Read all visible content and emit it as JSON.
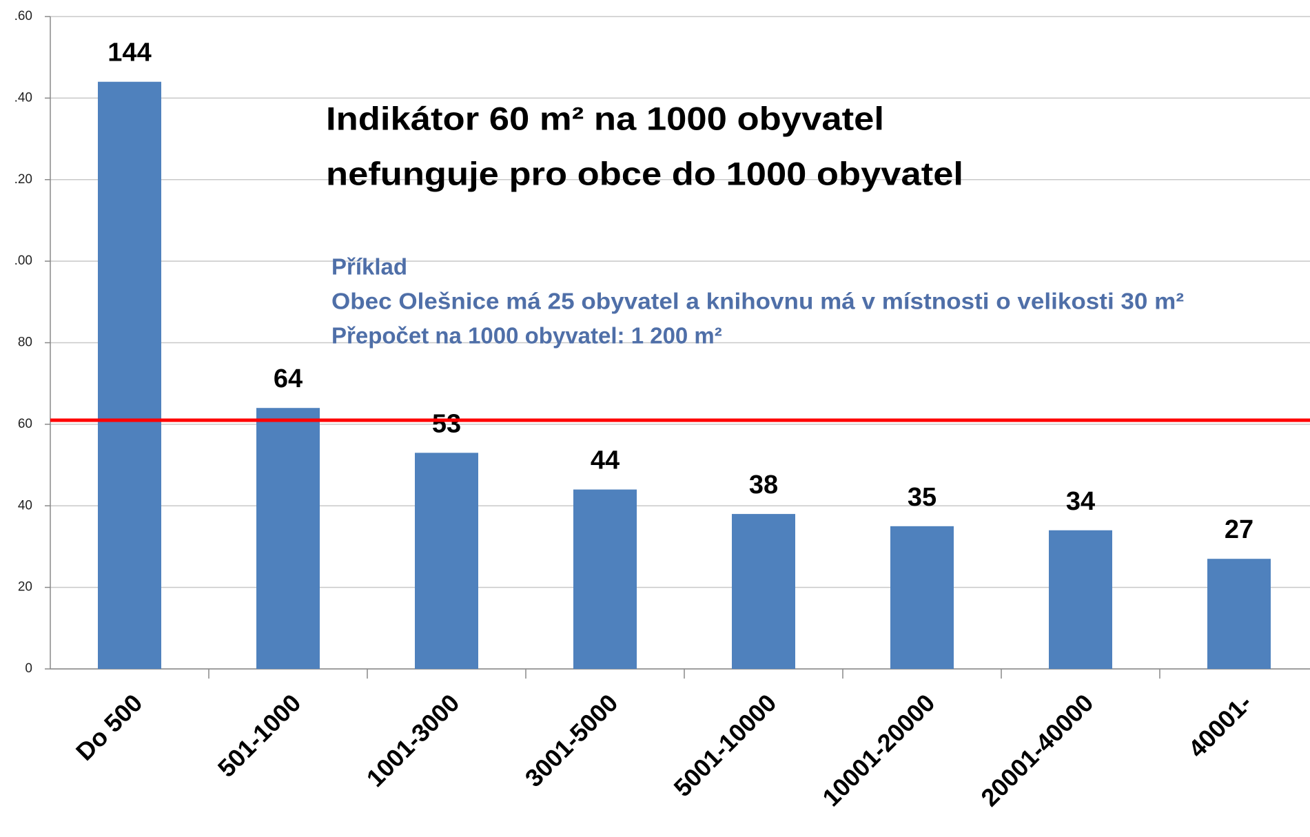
{
  "chart_data": {
    "type": "bar",
    "categories": [
      "Do 500",
      "501-1000",
      "1001-3000",
      "3001-5000",
      "5001-10000",
      "10001-20000",
      "20001-40000",
      "40001-"
    ],
    "values": [
      144,
      64,
      53,
      44,
      38,
      35,
      34,
      27
    ],
    "color": "#4f81bd",
    "ylim": [
      0,
      160
    ],
    "yticks": [
      0,
      20,
      40,
      60,
      80,
      {
        "value": 100,
        "label": ".00"
      },
      {
        "value": 120,
        "label": ".20"
      },
      {
        "value": 140,
        "label": ".40"
      },
      {
        "value": 160,
        "label": ".60"
      }
    ],
    "grid": true,
    "reference_line": {
      "value": 61,
      "color": "#ff0000"
    },
    "title_lines": [
      "Indikátor 60 m² na 1000 obyvatel",
      "nefunguje pro obce do 1000 obyvatel"
    ],
    "annotation_lines": [
      "Příklad",
      "Obec Olešnice má 25 obyvatel a knihovnu má v místnosti o velikosti  30 m²",
      "Přepočet na 1000 obyvatel: 1 200 m²"
    ],
    "annotation_color": "#4f6fa8"
  }
}
